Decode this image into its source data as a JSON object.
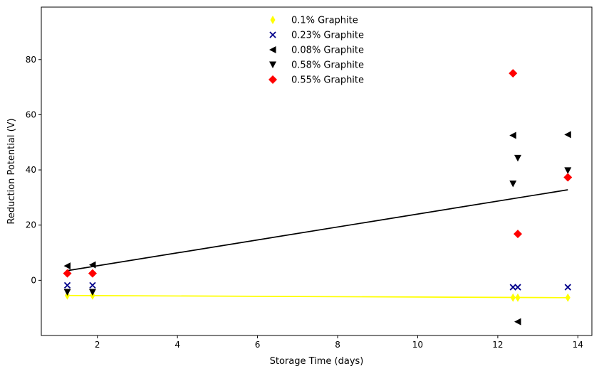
{
  "chart_data": {
    "type": "scatter",
    "title": "",
    "xlabel": "Storage Time (days)",
    "ylabel": "Reduction Potential (V)",
    "xlim": [
      0.6,
      14.35
    ],
    "ylim": [
      -20,
      99
    ],
    "xticks": [
      2,
      4,
      6,
      8,
      10,
      12,
      14
    ],
    "yticks": [
      0,
      20,
      40,
      60,
      80
    ],
    "grid": false,
    "legend_position": "top-center",
    "series": [
      {
        "name": "0.1% Graphite",
        "marker": "thin-diamond",
        "color": "#ffff00",
        "points": [
          [
            1.25,
            -5.5
          ],
          [
            1.88,
            -5.5
          ],
          [
            12.38,
            -6.3
          ],
          [
            12.5,
            -6.3
          ],
          [
            13.75,
            -6.3
          ]
        ]
      },
      {
        "name": "0.23% Graphite",
        "marker": "x",
        "color": "#00008b",
        "points": [
          [
            1.25,
            -1.8
          ],
          [
            1.88,
            -1.8
          ],
          [
            12.38,
            -2.5
          ],
          [
            12.5,
            -2.5
          ],
          [
            13.75,
            -2.5
          ]
        ]
      },
      {
        "name": "0.08% Graphite",
        "marker": "triangle-left",
        "color": "#000000",
        "points": [
          [
            1.25,
            5.2
          ],
          [
            1.88,
            5.6
          ],
          [
            12.38,
            52.5
          ],
          [
            12.5,
            -15.0
          ],
          [
            13.75,
            52.8
          ]
        ]
      },
      {
        "name": "0.58% Graphite",
        "marker": "triangle-down",
        "color": "#000000",
        "points": [
          [
            1.25,
            -4.3
          ],
          [
            1.88,
            -4.3
          ],
          [
            12.38,
            35.0
          ],
          [
            12.5,
            44.3
          ],
          [
            13.75,
            39.8
          ]
        ]
      },
      {
        "name": "0.55% Graphite",
        "marker": "diamond",
        "color": "#ff0000",
        "points": [
          [
            1.25,
            2.5
          ],
          [
            1.88,
            2.5
          ],
          [
            12.38,
            75.0
          ],
          [
            12.5,
            16.8
          ],
          [
            13.75,
            37.3
          ]
        ]
      }
    ],
    "fit_lines": [
      {
        "color": "#ffff00",
        "x": [
          1.25,
          13.75
        ],
        "y": [
          -5.5,
          -6.3
        ]
      },
      {
        "color": "#000000",
        "x": [
          1.25,
          13.75
        ],
        "y": [
          3.5,
          32.8
        ]
      }
    ]
  }
}
